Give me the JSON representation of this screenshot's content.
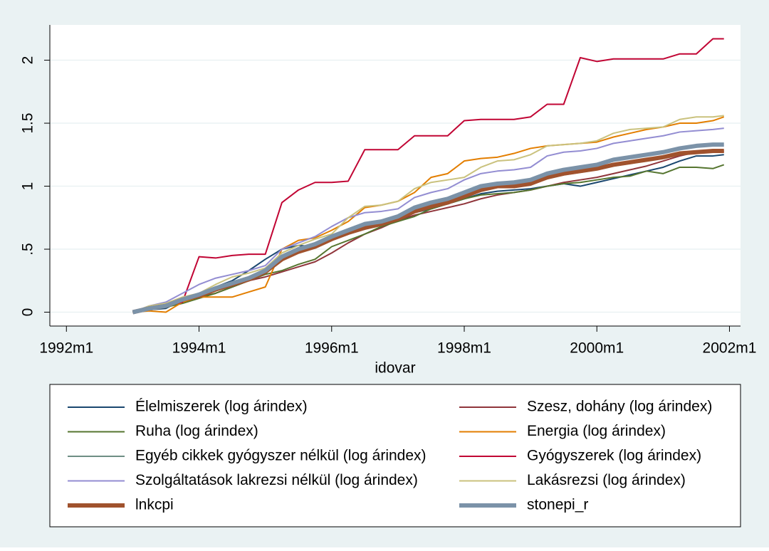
{
  "chart_data": {
    "type": "line",
    "x_label": "idovar",
    "x": [
      396,
      399,
      402,
      405,
      408,
      411,
      414,
      417,
      420,
      423,
      426,
      429,
      432,
      435,
      438,
      441,
      444,
      447,
      450,
      453,
      456,
      459,
      462,
      465,
      468,
      471,
      474,
      477,
      480,
      483,
      486,
      489,
      492,
      495,
      498,
      501,
      503
    ],
    "xlim": [
      381,
      506
    ],
    "xticks": [
      {
        "value": 384,
        "label": "1992m1"
      },
      {
        "value": 408,
        "label": "1994m1"
      },
      {
        "value": 432,
        "label": "1996m1"
      },
      {
        "value": 456,
        "label": "1998m1"
      },
      {
        "value": 480,
        "label": "2000m1"
      },
      {
        "value": 504,
        "label": "2002m1"
      }
    ],
    "ylim": [
      -0.11,
      2.28
    ],
    "yticks": [
      0,
      {
        "value": 0.5,
        "label": ".5"
      },
      1,
      1.5,
      2
    ],
    "grid": true,
    "legend": "bottom",
    "series": [
      {
        "name": "Élelmiszerek (log árindex)",
        "color": "#1a476f",
        "width": 2,
        "values": [
          0,
          0.02,
          0.03,
          0.1,
          0.14,
          0.2,
          0.25,
          0.33,
          0.42,
          0.5,
          0.53,
          0.52,
          0.57,
          0.63,
          0.67,
          0.7,
          0.75,
          0.79,
          0.82,
          0.86,
          0.9,
          0.94,
          0.96,
          0.97,
          0.98,
          1.0,
          1.02,
          1.0,
          1.03,
          1.06,
          1.09,
          1.12,
          1.15,
          1.2,
          1.24,
          1.24,
          1.25
        ]
      },
      {
        "name": "Szesz, dohány (log árindex)",
        "color": "#90353b",
        "width": 2,
        "values": [
          0,
          0.02,
          0.04,
          0.08,
          0.12,
          0.15,
          0.2,
          0.25,
          0.28,
          0.32,
          0.36,
          0.4,
          0.47,
          0.55,
          0.62,
          0.67,
          0.73,
          0.77,
          0.8,
          0.83,
          0.86,
          0.9,
          0.93,
          0.95,
          0.97,
          1.0,
          1.03,
          1.05,
          1.07,
          1.1,
          1.13,
          1.16,
          1.2,
          1.24,
          1.27,
          1.28,
          1.27
        ]
      },
      {
        "name": "Ruha (log árindex)",
        "color": "#55752f",
        "width": 2,
        "values": [
          0,
          0.02,
          0.04,
          0.07,
          0.11,
          0.15,
          0.2,
          0.25,
          0.3,
          0.33,
          0.38,
          0.42,
          0.52,
          0.57,
          0.62,
          0.68,
          0.72,
          0.76,
          0.82,
          0.86,
          0.9,
          0.93,
          0.94,
          0.95,
          0.97,
          1.0,
          1.02,
          1.03,
          1.05,
          1.07,
          1.08,
          1.12,
          1.1,
          1.15,
          1.15,
          1.14,
          1.17
        ]
      },
      {
        "name": "Energia (log árindex)",
        "color": "#e37e00",
        "width": 2,
        "values": [
          0,
          0.01,
          0.0,
          0.08,
          0.12,
          0.12,
          0.12,
          0.16,
          0.2,
          0.5,
          0.57,
          0.59,
          0.65,
          0.72,
          0.83,
          0.85,
          0.88,
          0.95,
          1.07,
          1.1,
          1.2,
          1.22,
          1.23,
          1.26,
          1.3,
          1.32,
          1.33,
          1.34,
          1.35,
          1.39,
          1.42,
          1.45,
          1.47,
          1.5,
          1.5,
          1.52,
          1.55
        ]
      },
      {
        "name": "Egyéb cikkek gyógyszer nélkül (log árindex)",
        "color": "#6e8e84",
        "width": 2,
        "values": [
          0,
          0.03,
          0.05,
          0.1,
          0.13,
          0.18,
          0.22,
          0.26,
          0.32,
          0.43,
          0.48,
          0.52,
          0.58,
          0.64,
          0.68,
          0.7,
          0.74,
          0.8,
          0.85,
          0.88,
          0.92,
          0.96,
          0.99,
          1.0,
          1.02,
          1.06,
          1.09,
          1.11,
          1.13,
          1.16,
          1.18,
          1.2,
          1.23,
          1.25,
          1.27,
          1.28,
          1.28
        ]
      },
      {
        "name": "Gyógyszerek  (log árindex)",
        "color": "#c10534",
        "width": 2,
        "values": [
          0,
          0.02,
          0.05,
          0.08,
          0.44,
          0.43,
          0.45,
          0.46,
          0.46,
          0.87,
          0.97,
          1.03,
          1.03,
          1.04,
          1.29,
          1.29,
          1.29,
          1.4,
          1.4,
          1.4,
          1.52,
          1.53,
          1.53,
          1.53,
          1.55,
          1.65,
          1.65,
          2.02,
          1.99,
          2.01,
          2.01,
          2.01,
          2.01,
          2.05,
          2.05,
          2.17,
          2.17
        ]
      },
      {
        "name": "Szolgáltatások lakrezsi nélkül (log árindex)",
        "color": "#938dd2",
        "width": 2,
        "values": [
          0,
          0.05,
          0.08,
          0.15,
          0.22,
          0.27,
          0.3,
          0.33,
          0.37,
          0.5,
          0.55,
          0.6,
          0.68,
          0.75,
          0.79,
          0.8,
          0.82,
          0.91,
          0.95,
          0.98,
          1.05,
          1.1,
          1.12,
          1.13,
          1.15,
          1.24,
          1.27,
          1.28,
          1.3,
          1.34,
          1.36,
          1.38,
          1.4,
          1.43,
          1.44,
          1.45,
          1.46
        ]
      },
      {
        "name": "Lakásrezsi (log árindex)",
        "color": "#cac27e",
        "width": 2,
        "values": [
          0,
          0.05,
          0.07,
          0.12,
          0.15,
          0.22,
          0.28,
          0.31,
          0.35,
          0.47,
          0.53,
          0.58,
          0.62,
          0.75,
          0.84,
          0.85,
          0.88,
          0.98,
          1.03,
          1.05,
          1.07,
          1.15,
          1.2,
          1.21,
          1.25,
          1.32,
          1.33,
          1.34,
          1.36,
          1.42,
          1.45,
          1.46,
          1.47,
          1.53,
          1.55,
          1.55,
          1.56
        ]
      },
      {
        "name": "lnkcpi",
        "color": "#a0522d",
        "width": 6,
        "values": [
          0,
          0.03,
          0.05,
          0.1,
          0.13,
          0.18,
          0.22,
          0.26,
          0.32,
          0.42,
          0.48,
          0.52,
          0.58,
          0.63,
          0.67,
          0.7,
          0.74,
          0.8,
          0.84,
          0.87,
          0.92,
          0.97,
          1.0,
          1.0,
          1.02,
          1.07,
          1.1,
          1.12,
          1.14,
          1.17,
          1.19,
          1.21,
          1.23,
          1.26,
          1.27,
          1.28,
          1.28
        ]
      },
      {
        "name": "stonepi_r",
        "color": "#7b92a8",
        "width": 6,
        "values": [
          0,
          0.03,
          0.05,
          0.1,
          0.14,
          0.19,
          0.23,
          0.27,
          0.33,
          0.44,
          0.5,
          0.54,
          0.6,
          0.65,
          0.7,
          0.72,
          0.76,
          0.83,
          0.87,
          0.9,
          0.95,
          1.0,
          1.02,
          1.03,
          1.05,
          1.1,
          1.13,
          1.15,
          1.17,
          1.21,
          1.23,
          1.25,
          1.27,
          1.3,
          1.32,
          1.33,
          1.33
        ]
      }
    ]
  }
}
